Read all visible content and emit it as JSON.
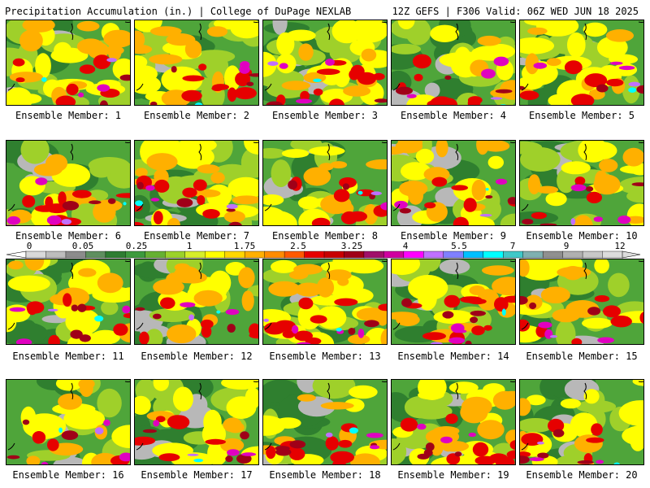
{
  "header": {
    "title": "Precipitation Accumulation (in.) | College of DuPage NEXLAB",
    "run_info": "12Z GEFS | F306 Valid: 06Z WED JUN 18 2025"
  },
  "members": [
    "Ensemble Member: 1",
    "Ensemble Member: 2",
    "Ensemble Member: 3",
    "Ensemble Member: 4",
    "Ensemble Member: 5",
    "Ensemble Member: 6",
    "Ensemble Member: 7",
    "Ensemble Member: 8",
    "Ensemble Member: 9",
    "Ensemble Member: 10",
    "Ensemble Member: 11",
    "Ensemble Member: 12",
    "Ensemble Member: 13",
    "Ensemble Member: 14",
    "Ensemble Member: 15",
    "Ensemble Member: 16",
    "Ensemble Member: 17",
    "Ensemble Member: 18",
    "Ensemble Member: 19",
    "Ensemble Member: 20"
  ],
  "legend": {
    "labels": [
      "0",
      "0.05",
      "0.25",
      "1",
      "1.75",
      "2.5",
      "3.25",
      "4",
      "5.5",
      "7",
      "9",
      "12"
    ],
    "colors": [
      "#d9d9d9",
      "#bdbdbd",
      "#8c8c8c",
      "#5f8f5f",
      "#2e7d32",
      "#3d9a3d",
      "#66b032",
      "#9bd22a",
      "#d6ee2a",
      "#ffff00",
      "#ffd700",
      "#ffb000",
      "#ff8c00",
      "#ff5a00",
      "#e60000",
      "#c80000",
      "#a00018",
      "#a0106a",
      "#d000a0",
      "#ff00ff",
      "#c070ff",
      "#8080ff",
      "#00c0ff",
      "#00ffff",
      "#40c8c8",
      "#7fb0b0",
      "#909090",
      "#b0b0b0",
      "#c8c8c8",
      "#dcdcdc"
    ]
  },
  "field_colors": {
    "gray": "#b8b8b8",
    "darkgreen": "#2f7f2f",
    "green": "#4fa53a",
    "lime": "#9fd02a",
    "yellow": "#ffff00",
    "orange": "#ffb000",
    "red": "#e60000",
    "darkred": "#a00018",
    "magenta": "#e000c0",
    "purple": "#c070ff",
    "cyan": "#00ffff"
  }
}
